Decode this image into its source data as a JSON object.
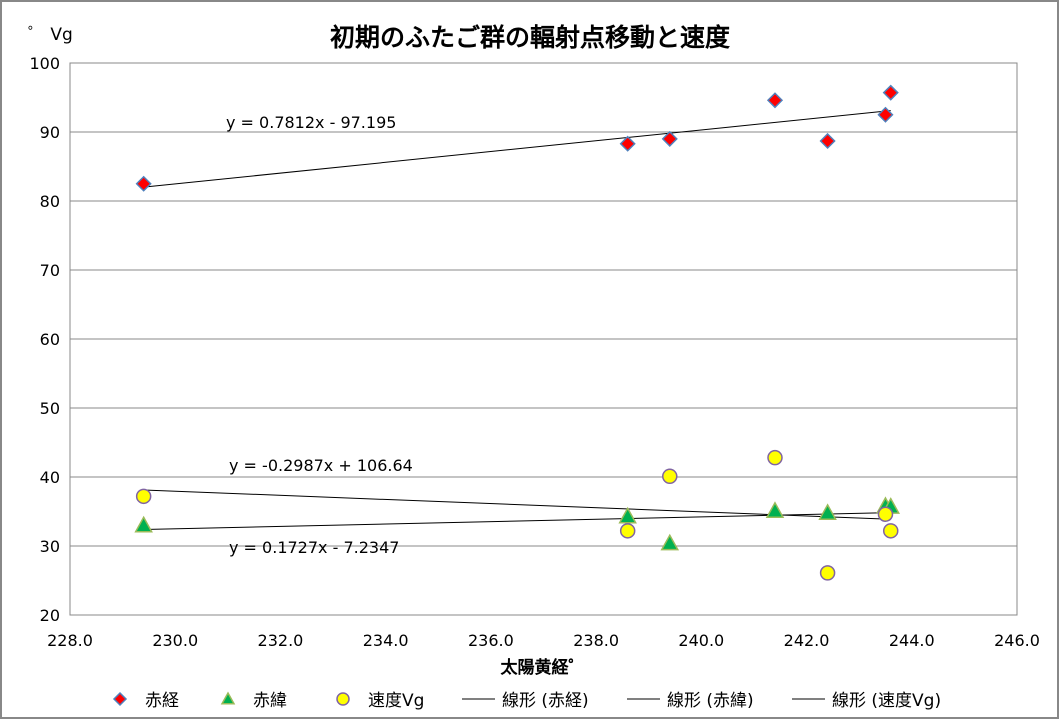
{
  "chart_data": {
    "type": "scatter",
    "title": "初期のふたご群の輻射点移動と速度",
    "xlabel": "太陽黄経゜",
    "ylabel": "゜ Vg",
    "xlim": [
      228,
      246
    ],
    "ylim": [
      20,
      100
    ],
    "xticks": [
      "228.0",
      "230.0",
      "232.0",
      "234.0",
      "236.0",
      "238.0",
      "240.0",
      "242.0",
      "244.0",
      "246.0"
    ],
    "yticks": [
      "20",
      "30",
      "40",
      "50",
      "60",
      "70",
      "80",
      "90",
      "100"
    ],
    "grid": "horizontal",
    "legend_position": "bottom",
    "x": [
      229.4,
      238.6,
      239.4,
      241.4,
      242.4,
      243.5,
      243.6
    ],
    "series": [
      {
        "name": "赤経",
        "marker": "diamond",
        "color": "#ff0000",
        "edge": "#4f81bd",
        "values": [
          82.5,
          88.3,
          89.0,
          94.6,
          88.7,
          92.5,
          95.7
        ]
      },
      {
        "name": "赤緯",
        "marker": "triangle",
        "color": "#00b050",
        "edge": "#9bbb59",
        "values": [
          33.0,
          34.3,
          30.4,
          35.1,
          34.8,
          35.8,
          35.7
        ]
      },
      {
        "name": "速度Vg",
        "marker": "circle",
        "color": "#ffff00",
        "edge": "#8064a2",
        "values": [
          37.2,
          32.2,
          40.1,
          42.8,
          26.1,
          34.6,
          32.2
        ]
      }
    ],
    "trendlines": [
      {
        "name": "線形 (赤経)",
        "slope": 0.7812,
        "intercept": -97.195,
        "label": "y = 0.7812x - 97.195"
      },
      {
        "name": "線形 (赤緯)",
        "slope": 0.1727,
        "intercept": -7.2347,
        "label": "y = 0.1727x - 7.2347"
      },
      {
        "name": "線形 (速度Vg)",
        "slope": -0.2987,
        "intercept": 106.64,
        "label": "y = -0.2987x + 106.64"
      }
    ]
  }
}
